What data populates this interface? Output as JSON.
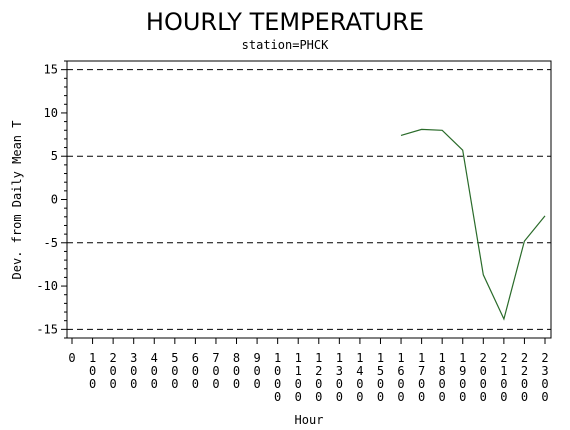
{
  "chart_data": {
    "type": "line",
    "title": "HOURLY TEMPERATURE",
    "subtitle": "station=PHCK",
    "xlabel": "Hour",
    "ylabel": "Dev. from Daily Mean T",
    "xlim": [
      0,
      2300
    ],
    "ylim": [
      -16,
      16
    ],
    "x_ticks": [
      0,
      100,
      200,
      300,
      400,
      500,
      600,
      700,
      800,
      900,
      1000,
      1100,
      1200,
      1300,
      1400,
      1500,
      1600,
      1700,
      1800,
      1900,
      2000,
      2100,
      2200,
      2300
    ],
    "x_tick_labels": [
      "0",
      "100",
      "200",
      "300",
      "400",
      "500",
      "600",
      "700",
      "800",
      "900",
      "1000",
      "1100",
      "1200",
      "1300",
      "1400",
      "1500",
      "1600",
      "1700",
      "1800",
      "1900",
      "2000",
      "2100",
      "2200",
      "2300"
    ],
    "y_ticks": [
      -15,
      -10,
      -5,
      0,
      5,
      10,
      15
    ],
    "y_tick_labels": [
      "-15",
      "-10",
      "-5",
      "0",
      "5",
      "10",
      "15"
    ],
    "reference_lines_y": [
      -15,
      -5,
      5,
      15
    ],
    "grid": false,
    "series": [
      {
        "color": "#2a6b2a",
        "x": [
          1600,
          1700,
          1800,
          1900,
          2000,
          2100,
          2200,
          2300
        ],
        "y": [
          7.4,
          8.1,
          8.0,
          5.7,
          -8.7,
          -13.8,
          -4.8,
          -1.9
        ]
      }
    ]
  }
}
